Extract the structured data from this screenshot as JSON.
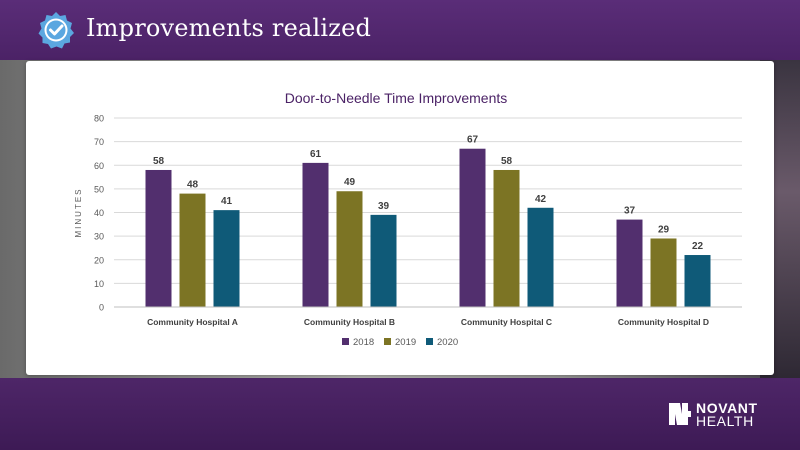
{
  "slide": {
    "title": "Improvements realized",
    "logo_text_top": "NOVANT",
    "logo_text_bottom": "HEALTH",
    "badge_icon": "check-badge-icon"
  },
  "colors": {
    "brand_purple": "#4b2266",
    "series_2018": "#522f6e",
    "series_2019": "#7c7424",
    "series_2020": "#0f5a78"
  },
  "chart_data": {
    "type": "bar",
    "title": "Door-to-Needle Time  Improvements",
    "xlabel": "",
    "ylabel": "MINUTES",
    "categories": [
      "Community Hospital A",
      "Community Hospital B",
      "Community Hospital C",
      "Community Hospital D"
    ],
    "series": [
      {
        "name": "2018",
        "values": [
          58,
          61,
          67,
          37
        ],
        "color": "#522f6e"
      },
      {
        "name": "2019",
        "values": [
          48,
          49,
          58,
          29
        ],
        "color": "#7c7424"
      },
      {
        "name": "2020",
        "values": [
          41,
          39,
          42,
          22
        ],
        "color": "#0f5a78"
      }
    ],
    "ylim": [
      0,
      80
    ],
    "yticks": [
      0,
      10,
      20,
      30,
      40,
      50,
      60,
      70,
      80
    ],
    "grid": true,
    "legend_position": "bottom",
    "data_labels": true
  }
}
